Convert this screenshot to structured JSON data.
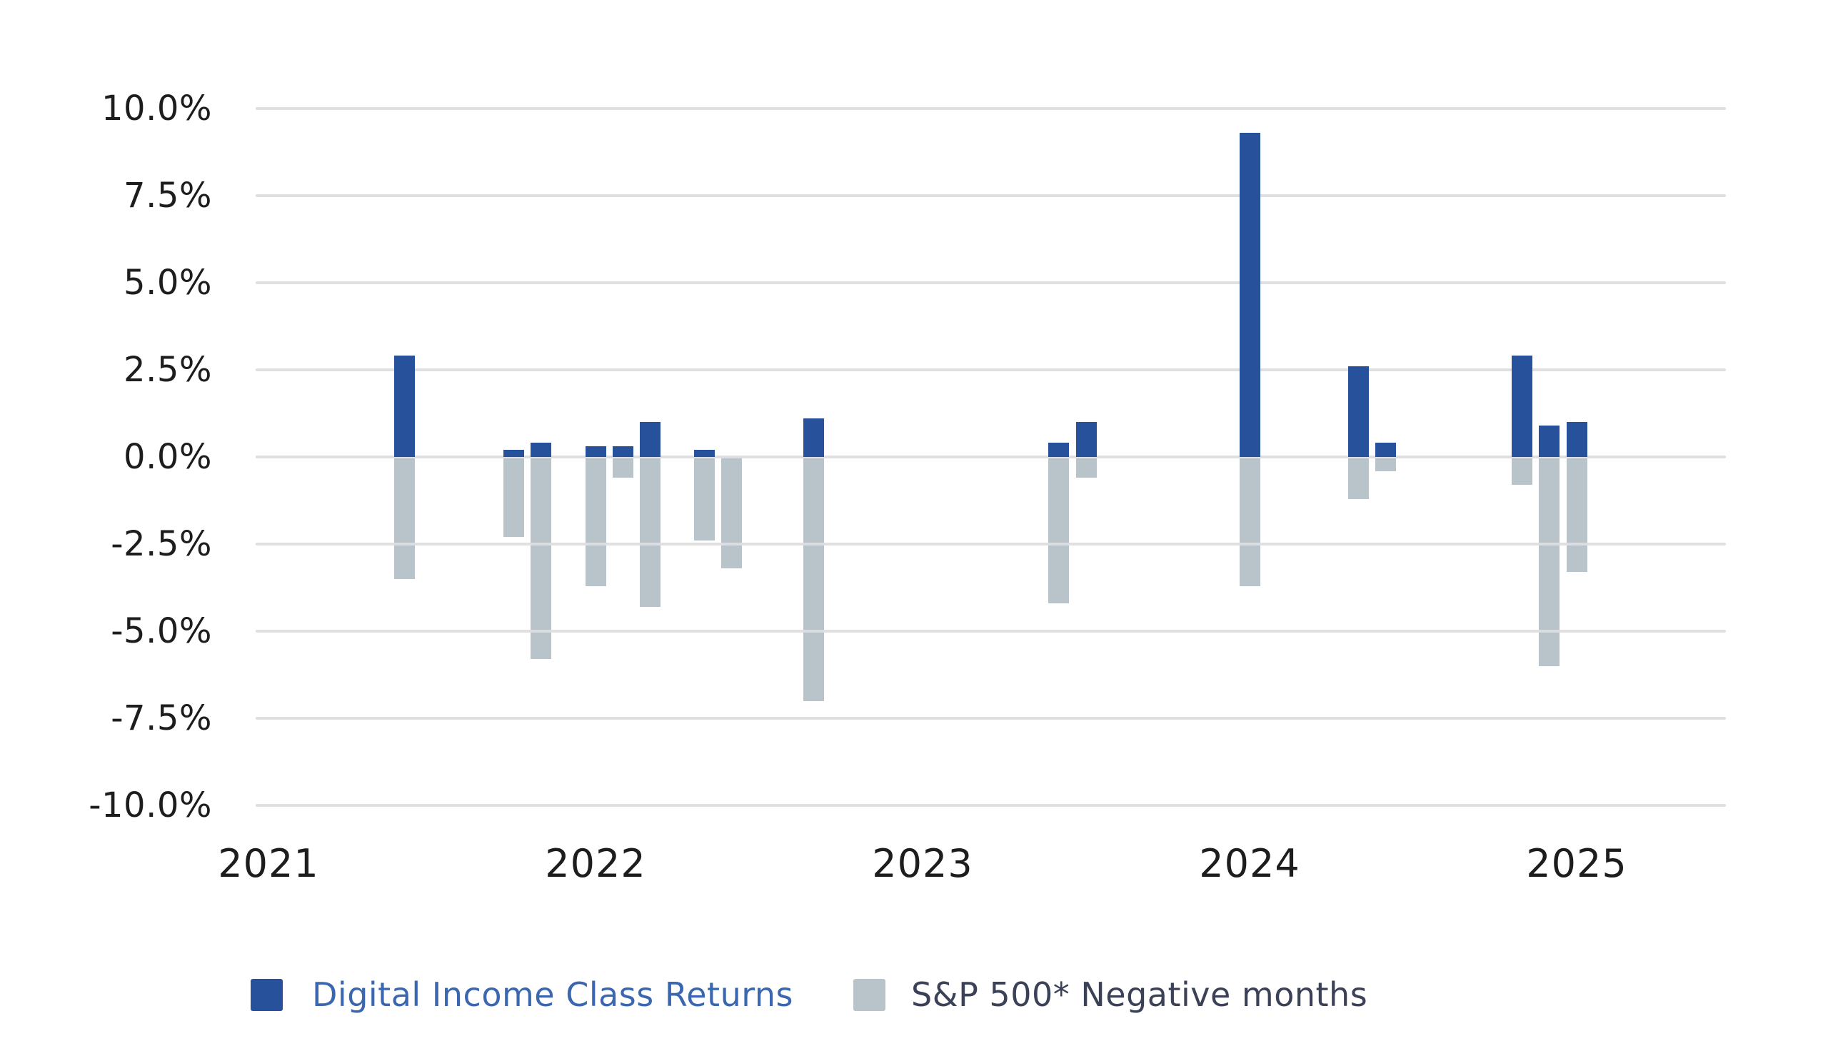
{
  "chart_data": {
    "type": "bar",
    "title": "",
    "y_axis": {
      "unit": "%",
      "min": -10,
      "max": 10,
      "tick_step": 2.5,
      "tick_labels": [
        "10.0%",
        "7.5%",
        "5.0%",
        "2.5%",
        "0.0%",
        "-2.5%",
        "-5.0%",
        "-7.5%",
        "-10.0%"
      ],
      "tick_values": [
        10,
        7.5,
        5,
        2.5,
        0,
        -2.5,
        -5,
        -7.5,
        -10
      ]
    },
    "x_axis": {
      "tick_labels": [
        "2021",
        "2022",
        "2023",
        "2024",
        "2025"
      ],
      "unit": "months (unlabeled), years marked"
    },
    "grid": true,
    "legend_position": "bottom",
    "series": [
      {
        "name": "Digital Income Class Returns",
        "color": "#27519B"
      },
      {
        "name": "S&P 500* Negative months",
        "color": "#B9C3CA"
      }
    ],
    "bars": [
      {
        "month_index_from_jan_2021": 5,
        "digital_income_return_pct": 2.9,
        "sp500_return_pct": -3.5
      },
      {
        "month_index_from_jan_2021": 9,
        "digital_income_return_pct": 0.2,
        "sp500_return_pct": -2.3
      },
      {
        "month_index_from_jan_2021": 10,
        "digital_income_return_pct": 0.4,
        "sp500_return_pct": -5.8
      },
      {
        "month_index_from_jan_2021": 12,
        "digital_income_return_pct": 0.3,
        "sp500_return_pct": -3.7
      },
      {
        "month_index_from_jan_2021": 13,
        "digital_income_return_pct": 0.3,
        "sp500_return_pct": -0.6
      },
      {
        "month_index_from_jan_2021": 14,
        "digital_income_return_pct": 1.0,
        "sp500_return_pct": -4.3
      },
      {
        "month_index_from_jan_2021": 16,
        "digital_income_return_pct": 0.2,
        "sp500_return_pct": -2.4
      },
      {
        "month_index_from_jan_2021": 17,
        "digital_income_return_pct": 0.0,
        "sp500_return_pct": -3.2
      },
      {
        "month_index_from_jan_2021": 20,
        "digital_income_return_pct": 1.1,
        "sp500_return_pct": -7.0
      },
      {
        "month_index_from_jan_2021": 29,
        "digital_income_return_pct": 0.4,
        "sp500_return_pct": -4.2
      },
      {
        "month_index_from_jan_2021": 30,
        "digital_income_return_pct": 1.0,
        "sp500_return_pct": -0.6
      },
      {
        "month_index_from_jan_2021": 36,
        "digital_income_return_pct": 9.3,
        "sp500_return_pct": -3.7
      },
      {
        "month_index_from_jan_2021": 40,
        "digital_income_return_pct": 2.6,
        "sp500_return_pct": -1.2
      },
      {
        "month_index_from_jan_2021": 41,
        "digital_income_return_pct": 0.4,
        "sp500_return_pct": -0.4
      },
      {
        "month_index_from_jan_2021": 46,
        "digital_income_return_pct": 2.9,
        "sp500_return_pct": -0.8
      },
      {
        "month_index_from_jan_2021": 47,
        "digital_income_return_pct": 0.9,
        "sp500_return_pct": -6.0
      },
      {
        "month_index_from_jan_2021": 48,
        "digital_income_return_pct": 1.0,
        "sp500_return_pct": -3.3
      }
    ]
  },
  "legend": {
    "digital_label": "Digital Income Class Returns",
    "sp500_label": "S&P 500* Negative months"
  },
  "colors": {
    "digital_bar": "#27519B",
    "sp500_bar": "#B9C3CA",
    "gridline": "#E0E0E0",
    "gridline_over_bar": "rgba(224,226,228,0.85)",
    "axis_text": "#1D1D1F",
    "legend_digital_text": "#3A67B0",
    "legend_sp500_text": "#3B4156",
    "background": "#FFFFFF"
  }
}
